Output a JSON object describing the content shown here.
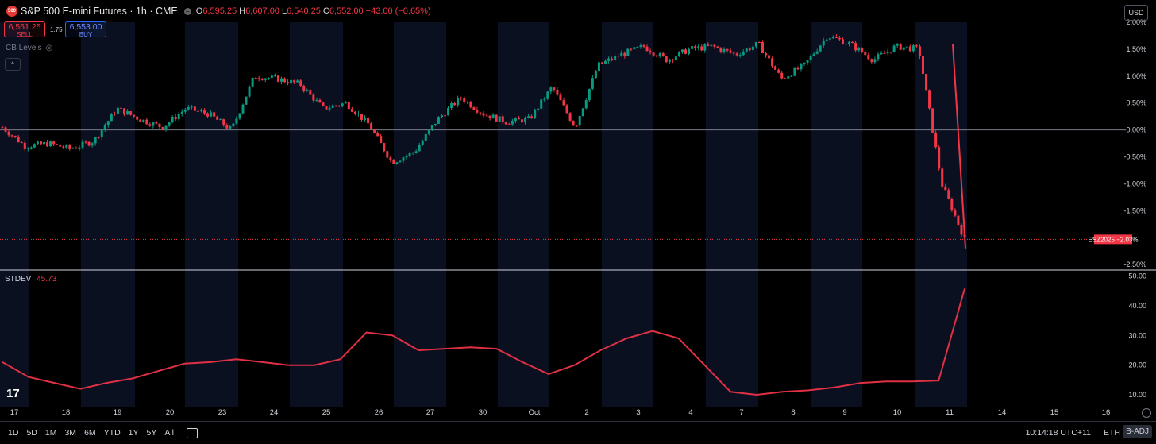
{
  "header": {
    "logo_text": "500",
    "title": "S&P 500 E-mini Futures · 1h · CME",
    "ohlc": [
      {
        "k": "O",
        "v": "6,595.25"
      },
      {
        "k": "H",
        "v": "6,607.00"
      },
      {
        "k": "L",
        "v": "6,540.25"
      },
      {
        "k": "C",
        "v": "6,552.00"
      },
      {
        "k": "",
        "v": "−43.00 (−0.65%)"
      }
    ]
  },
  "trade": {
    "sell_price": "6,551.25",
    "sell_label": "SELL",
    "spread": "1.75",
    "buy_price": "6,553.00",
    "buy_label": "BUY"
  },
  "indicator": {
    "cb_levels": "CB Levels"
  },
  "currency": "USD",
  "price_axis": [
    "2.00%",
    "1.50%",
    "1.00%",
    "0.50%",
    "0.00%",
    "-0.50%",
    "-1.00%",
    "-1.50%",
    "-2.50%"
  ],
  "current_badge": {
    "symbol": "ESZ2025",
    "value": "−2.03%"
  },
  "stdev": {
    "name": "STDEV",
    "value": "45.73",
    "axis": [
      "50.00",
      "40.00",
      "30.00",
      "20.00",
      "10.00"
    ]
  },
  "time_axis": [
    "17",
    "18",
    "19",
    "20",
    "23",
    "24",
    "25",
    "26",
    "27",
    "30",
    "Oct",
    "2",
    "3",
    "4",
    "7",
    "8",
    "9",
    "10",
    "11",
    "14",
    "15",
    "16"
  ],
  "ranges": [
    "1D",
    "5D",
    "1M",
    "3M",
    "6M",
    "YTD",
    "1Y",
    "5Y",
    "All"
  ],
  "clock": "10:14:18 UTC+11",
  "session": "ETH",
  "adjust": "B-ADJ",
  "colors": {
    "up": "#089981",
    "down": "#f23645",
    "stdev": "#e03044",
    "night": "#0b1020"
  },
  "chart_data": {
    "type": "candlestick",
    "y_unit": "% change",
    "ylim": [
      -2.6,
      2.0
    ],
    "close_path": [
      [
        0,
        0.05
      ],
      [
        1,
        -0.3
      ],
      [
        2,
        -0.25
      ],
      [
        3,
        -0.35
      ],
      [
        4,
        -0.2
      ],
      [
        5,
        0.4
      ],
      [
        6,
        0.2
      ],
      [
        7,
        0.05
      ],
      [
        8,
        0.4
      ],
      [
        9,
        0.3
      ],
      [
        10,
        -0.0
      ],
      [
        11,
        1.0
      ],
      [
        12,
        0.95
      ],
      [
        13,
        0.85
      ],
      [
        14,
        0.4
      ],
      [
        15,
        0.5
      ],
      [
        16,
        0.1
      ],
      [
        17,
        -0.6
      ],
      [
        18,
        -0.4
      ],
      [
        19,
        0.2
      ],
      [
        20,
        0.6
      ],
      [
        21,
        0.3
      ],
      [
        22,
        0.15
      ],
      [
        23,
        0.2
      ],
      [
        24,
        0.8
      ],
      [
        25,
        0.05
      ],
      [
        26,
        1.2
      ],
      [
        27,
        1.4
      ],
      [
        28,
        1.55
      ],
      [
        29,
        1.3
      ],
      [
        30,
        1.5
      ],
      [
        31,
        1.55
      ],
      [
        32,
        1.4
      ],
      [
        33,
        1.6
      ],
      [
        34,
        0.95
      ],
      [
        35,
        1.2
      ],
      [
        36,
        1.75
      ],
      [
        37,
        1.6
      ],
      [
        38,
        1.3
      ],
      [
        39,
        1.55
      ],
      [
        40,
        1.5
      ],
      [
        41,
        -1.0
      ],
      [
        42,
        -2.03
      ]
    ],
    "stdev_path": [
      [
        0,
        21
      ],
      [
        1,
        16
      ],
      [
        2,
        14
      ],
      [
        3,
        12
      ],
      [
        4,
        14
      ],
      [
        5,
        15.5
      ],
      [
        6,
        18
      ],
      [
        7,
        20.5
      ],
      [
        8,
        21
      ],
      [
        9,
        22
      ],
      [
        10,
        21
      ],
      [
        11,
        20
      ],
      [
        12,
        20
      ],
      [
        13,
        22
      ],
      [
        14,
        31
      ],
      [
        15,
        30
      ],
      [
        16,
        25
      ],
      [
        17,
        25.5
      ],
      [
        18,
        26
      ],
      [
        19,
        25.5
      ],
      [
        20,
        21
      ],
      [
        21,
        17
      ],
      [
        22,
        20
      ],
      [
        23,
        25
      ],
      [
        24,
        29
      ],
      [
        25,
        31.5
      ],
      [
        26,
        29
      ],
      [
        27,
        20
      ],
      [
        28,
        11
      ],
      [
        29,
        10
      ],
      [
        30,
        11
      ],
      [
        31,
        11.5
      ],
      [
        32,
        12.5
      ],
      [
        33,
        14
      ],
      [
        34,
        14.5
      ],
      [
        35,
        14.5
      ],
      [
        36,
        14.8
      ],
      [
        37,
        45.73
      ]
    ]
  }
}
